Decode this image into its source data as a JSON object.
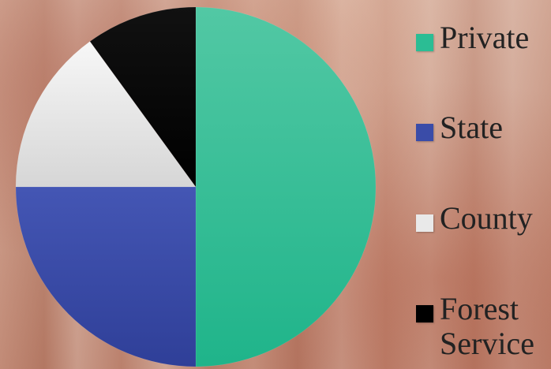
{
  "chart_data": {
    "type": "pie",
    "title": "",
    "categories": [
      "Private",
      "State",
      "County",
      "Forest Service"
    ],
    "values": [
      50,
      25,
      15,
      10
    ],
    "colors": [
      "#2bbd94",
      "#3a4ca8",
      "#e9e9e9",
      "#000000"
    ],
    "start_angle_deg": 0,
    "direction": "clockwise",
    "legend_position": "right",
    "legend": [
      {
        "label": "Private",
        "color": "#2bbd94"
      },
      {
        "label": "State",
        "color": "#3a4ca8"
      },
      {
        "label": "County",
        "color": "#e9e9e9"
      },
      {
        "label": "Forest\nService",
        "color": "#000000"
      }
    ]
  }
}
